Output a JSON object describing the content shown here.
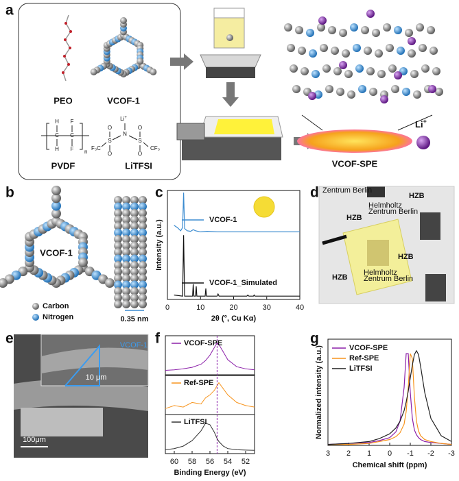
{
  "panel_labels": [
    "a",
    "b",
    "c",
    "d",
    "e",
    "f",
    "g"
  ],
  "panel_a": {
    "peo": "PEO",
    "vcof": "VCOF-1",
    "pvdf": "PVDF",
    "litfsi": "LiTFSI",
    "product": "VCOF-SPE",
    "ion": "Li",
    "ion_charge": "+",
    "pvdf_atoms": [
      "H",
      "F",
      "C",
      "C",
      "H",
      "F",
      "n"
    ],
    "litfsi_atoms": [
      "Li",
      "+",
      "N",
      "S",
      "S",
      "O",
      "O",
      "O",
      "O",
      "F₃C",
      "CF₃"
    ]
  },
  "panel_b": {
    "label": "VCOF-1",
    "legend": [
      "Carbon",
      "Nitrogen"
    ],
    "spacing": "0.35 nm"
  },
  "panel_d": {
    "texts": [
      "Zentrum Berlin",
      "HZB",
      "HZB",
      "Helmholtz",
      "Zentrum Berlin",
      "HZB",
      "HZB",
      "Helmholtz",
      "Zentrum Berlin"
    ]
  },
  "panel_e": {
    "label": "VCOF-1",
    "scale_inset": "10 μm",
    "scale_main": "100μm"
  },
  "chart_data": [
    {
      "type": "line",
      "xlabel": "2θ (°, Cu Kα)",
      "ylabel": "Intensity (a.u.)",
      "xlim": [
        0,
        40
      ],
      "xticks": [
        0,
        10,
        20,
        30,
        40
      ],
      "ylim": [
        0,
        100
      ],
      "series": [
        {
          "name": "VCOF-1",
          "color": "#3b8bd0",
          "x": [
            2,
            3,
            4,
            4.6,
            4.9,
            5.2,
            6,
            7,
            7.8,
            8.5,
            10,
            12,
            15,
            20,
            30,
            40
          ],
          "values": [
            68,
            66,
            63,
            66,
            98,
            65,
            63,
            62.5,
            64,
            63,
            62,
            62.5,
            62,
            62,
            62,
            62
          ]
        },
        {
          "name": "VCOF-1_Simulated",
          "color": "#111111",
          "x": [
            2,
            4.6,
            4.9,
            5.2,
            7.6,
            7.8,
            8.0,
            8.5,
            8.7,
            8.9,
            11.4,
            11.6,
            11.8,
            15,
            15.3,
            15.6,
            24,
            24.3,
            24.6,
            26,
            26.2,
            26.4,
            40
          ],
          "values": [
            4,
            3,
            59,
            3,
            3,
            14,
            3,
            3,
            12,
            3,
            3,
            10,
            3,
            3,
            5,
            3,
            3,
            4,
            3,
            3,
            4,
            3,
            3
          ]
        }
      ]
    },
    {
      "type": "line",
      "xlabel": "Binding Energy (eV)",
      "xlim": [
        61,
        51
      ],
      "xticks": [
        60,
        58,
        56,
        54,
        52
      ],
      "ylim": [
        0,
        1.1
      ],
      "reference_line": 55.2,
      "x": [
        61,
        60,
        59,
        58,
        57,
        56.5,
        56,
        55.5,
        55.2,
        55,
        54.5,
        54,
        53,
        52,
        51
      ],
      "series": [
        {
          "name": "VCOF-SPE",
          "color": "#8b1fa9",
          "values": [
            0.1,
            0.12,
            0.15,
            0.2,
            0.3,
            0.42,
            0.6,
            0.85,
            1.0,
            0.95,
            0.7,
            0.45,
            0.22,
            0.15,
            0.12
          ]
        },
        {
          "name": "Ref-SPE",
          "color": "#f7941d",
          "values": [
            0.15,
            0.25,
            0.2,
            0.35,
            0.3,
            0.5,
            0.6,
            0.75,
            0.9,
            1.0,
            0.8,
            0.6,
            0.35,
            0.25,
            0.2
          ]
        },
        {
          "name": "LiTFSI",
          "color": "#333333",
          "values": [
            0.08,
            0.12,
            0.2,
            0.38,
            0.7,
            0.95,
            0.9,
            0.65,
            0.45,
            0.35,
            0.2,
            0.12,
            0.08,
            0.07,
            0.06
          ]
        }
      ]
    },
    {
      "type": "line",
      "xlabel": "Chemical shift (ppm)",
      "ylabel": "Normalized intensity (a.u.)",
      "xlim": [
        3,
        -3
      ],
      "xticks": [
        3,
        2,
        1,
        0,
        -1,
        -2,
        -3
      ],
      "ylim": [
        0,
        1.1
      ],
      "x": [
        3,
        2,
        1,
        0.5,
        0,
        -0.3,
        -0.5,
        -0.7,
        -0.8,
        -0.9,
        -1.0,
        -1.1,
        -1.2,
        -1.3,
        -1.4,
        -1.5,
        -1.7,
        -2,
        -2.5,
        -3
      ],
      "series": [
        {
          "name": "VCOF-SPE",
          "color": "#8b1fa9",
          "values": [
            0.01,
            0.02,
            0.03,
            0.05,
            0.08,
            0.14,
            0.25,
            0.6,
            0.95,
            0.95,
            0.55,
            0.28,
            0.16,
            0.11,
            0.08,
            0.06,
            0.04,
            0.03,
            0.02,
            0.01
          ]
        },
        {
          "name": "Ref-SPE",
          "color": "#f7941d",
          "values": [
            0.01,
            0.01,
            0.02,
            0.04,
            0.06,
            0.09,
            0.13,
            0.22,
            0.35,
            0.6,
            0.95,
            0.9,
            0.5,
            0.25,
            0.15,
            0.1,
            0.06,
            0.04,
            0.02,
            0.01
          ]
        },
        {
          "name": "LiTFSI",
          "color": "#222222",
          "values": [
            0.01,
            0.02,
            0.04,
            0.07,
            0.12,
            0.18,
            0.25,
            0.36,
            0.45,
            0.56,
            0.7,
            0.83,
            0.94,
            0.98,
            0.94,
            0.82,
            0.55,
            0.28,
            0.1,
            0.04
          ]
        }
      ]
    }
  ]
}
